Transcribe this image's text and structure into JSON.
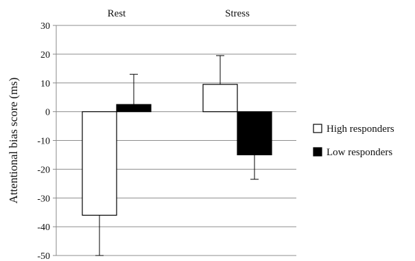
{
  "chart_data": {
    "type": "bar",
    "categories": [
      "Rest",
      "Stress"
    ],
    "series": [
      {
        "name": "High responders",
        "values": [
          -36,
          9.5
        ],
        "error": [
          14,
          10
        ],
        "error_dir": [
          "down",
          "up"
        ],
        "color": "#ffffff"
      },
      {
        "name": "Low responders",
        "values": [
          2.5,
          -15
        ],
        "error": [
          10.5,
          8.5
        ],
        "error_dir": [
          "up",
          "down"
        ],
        "color": "#000000"
      }
    ],
    "ylabel": "Attentional bias score (ms)",
    "xlabel": "",
    "title": "",
    "ylim": [
      -50,
      30
    ],
    "yticks": [
      30,
      20,
      10,
      0,
      -10,
      -20,
      -30,
      -40,
      -50
    ],
    "grid": true,
    "legend_position": "right"
  }
}
